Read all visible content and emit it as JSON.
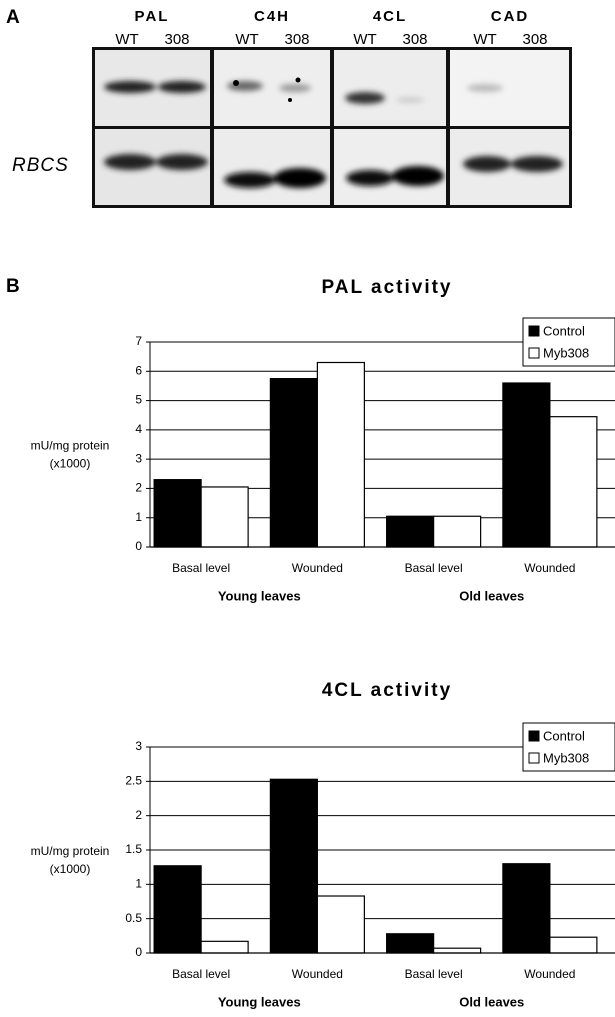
{
  "panels": [
    "A",
    "B"
  ],
  "blot": {
    "genes": [
      "PAL",
      "C4H",
      "4CL",
      "CAD"
    ],
    "lanes": [
      "WT",
      "308"
    ],
    "control_gene": "RBCS"
  },
  "chart_data": [
    {
      "type": "bar",
      "title": "PAL  activity",
      "ylabel": [
        "mU/mg protein",
        "(x1000)"
      ],
      "categories": [
        "Basal level",
        "Wounded",
        "Basal level",
        "Wounded"
      ],
      "groups": [
        "Young leaves",
        "Old leaves"
      ],
      "series": [
        {
          "name": "Control",
          "color": "#000000",
          "values": [
            2.3,
            5.75,
            1.05,
            5.6
          ]
        },
        {
          "name": "Myb308",
          "color": "#ffffff",
          "values": [
            2.05,
            6.3,
            1.05,
            4.45
          ]
        }
      ],
      "ylim": [
        0,
        7
      ],
      "yticks": [
        0,
        1,
        2,
        3,
        4,
        5,
        6,
        7
      ],
      "grid": true,
      "legend": "top-right"
    },
    {
      "type": "bar",
      "title": "4CL  activity",
      "ylabel": [
        "mU/mg protein",
        "(x1000)"
      ],
      "categories": [
        "Basal level",
        "Wounded",
        "Basal level",
        "Wounded"
      ],
      "groups": [
        "Young leaves",
        "Old leaves"
      ],
      "series": [
        {
          "name": "Control",
          "color": "#000000",
          "values": [
            1.27,
            2.53,
            0.28,
            1.3
          ]
        },
        {
          "name": "Myb308",
          "color": "#ffffff",
          "values": [
            0.17,
            0.83,
            0.07,
            0.23
          ]
        }
      ],
      "ylim": [
        0,
        3
      ],
      "yticks": [
        0,
        0.5,
        1,
        1.5,
        2,
        2.5,
        3
      ],
      "grid": true,
      "legend": "top-right"
    }
  ]
}
